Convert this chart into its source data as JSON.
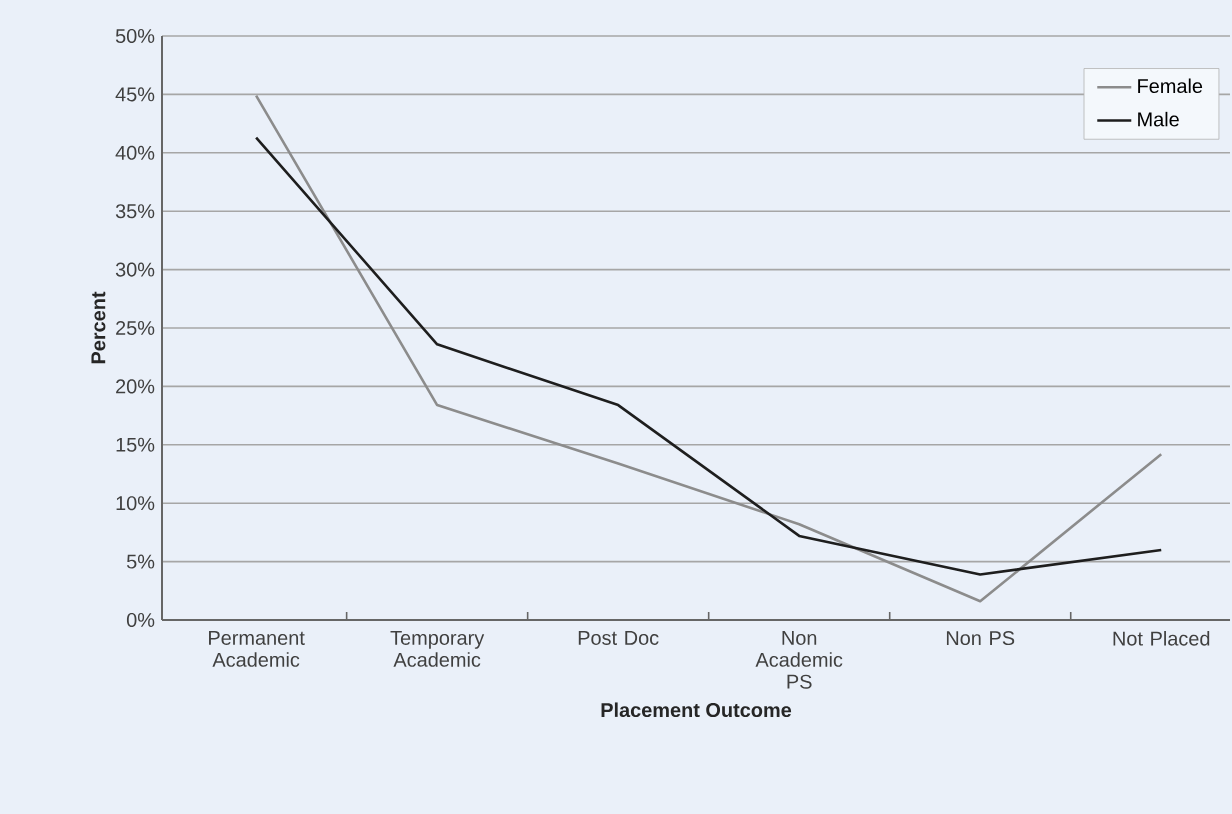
{
  "chart_data": {
    "type": "line",
    "xlabel": "Placement Outcome",
    "ylabel": "Percent",
    "categories": [
      "Permanent Academic",
      "Temporary Academic",
      "Post Doc",
      "Non Academic PS",
      "Non PS",
      "Not Placed"
    ],
    "series": [
      {
        "name": "Female",
        "color": "#8c8c8c",
        "values": [
          44.9,
          18.4,
          13.4,
          8.2,
          1.6,
          14.2
        ]
      },
      {
        "name": "Male",
        "color": "#1e1e1e",
        "values": [
          41.3,
          23.6,
          18.4,
          7.2,
          3.9,
          6.0
        ]
      }
    ],
    "ylim": [
      0,
      50
    ],
    "yticks": [
      {
        "value": 0,
        "label": "0%"
      },
      {
        "value": 5,
        "label": "5%"
      },
      {
        "value": 10,
        "label": "10%"
      },
      {
        "value": 15,
        "label": "15%"
      },
      {
        "value": 20,
        "label": "20%"
      },
      {
        "value": 25,
        "label": "25%"
      },
      {
        "value": 30,
        "label": "30%"
      },
      {
        "value": 35,
        "label": "35%"
      },
      {
        "value": 40,
        "label": "40%"
      },
      {
        "value": 45,
        "label": "45%"
      },
      {
        "value": 50,
        "label": "50%"
      }
    ],
    "grid": "y",
    "legend": "top right"
  }
}
